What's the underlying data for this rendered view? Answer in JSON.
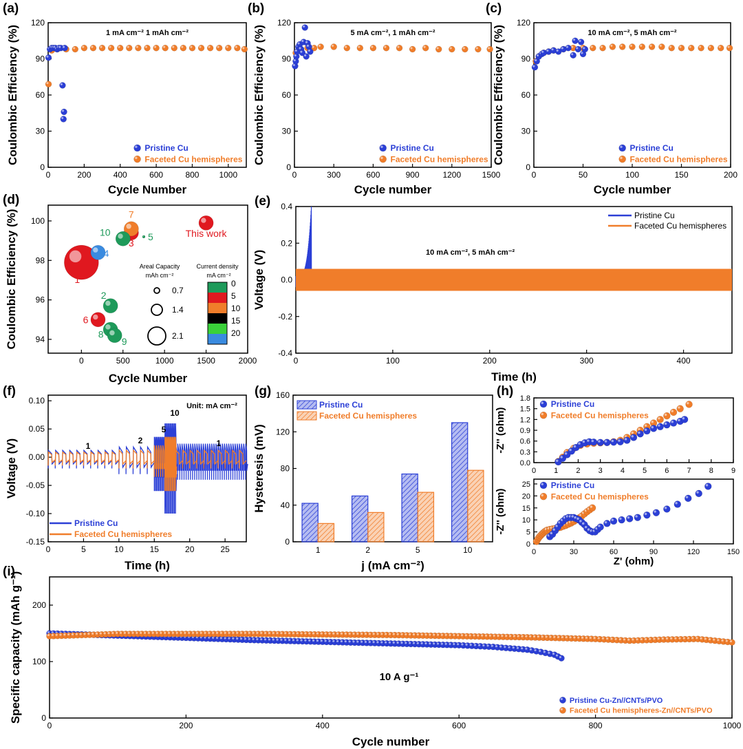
{
  "colors": {
    "pristine": "#2b3fd6",
    "faceted": "#f07d2a",
    "axis": "#000000"
  },
  "chart_data": [
    {
      "panel": "(a)",
      "type": "scatter",
      "annotation": "1 mA cm⁻² 1 mAh cm⁻²",
      "xlabel": "Cycle Number",
      "ylabel": "Coulombic Efficiency (%)",
      "xlim": [
        0,
        1100
      ],
      "ylim": [
        0,
        120
      ],
      "xticks": [
        0,
        200,
        400,
        600,
        800,
        1000
      ],
      "yticks": [
        0,
        30,
        60,
        90,
        120
      ],
      "legend": "bottom-right",
      "series": [
        {
          "name": "Pristine Cu",
          "x": [
            2,
            10,
            20,
            30,
            40,
            50,
            60,
            70,
            80,
            85,
            88,
            92
          ],
          "y": [
            91,
            98,
            99,
            99,
            99,
            98,
            99,
            99,
            68,
            40,
            46,
            99
          ]
        },
        {
          "name": "Faceted Cu hemispheres",
          "x": [
            2,
            20,
            50,
            100,
            150,
            200,
            250,
            300,
            350,
            400,
            450,
            500,
            550,
            600,
            650,
            700,
            750,
            800,
            850,
            900,
            950,
            1000,
            1050,
            1090
          ],
          "y": [
            69,
            97,
            98,
            98,
            98,
            99,
            99,
            99,
            99,
            99,
            99,
            99,
            99,
            99,
            99,
            99,
            99,
            99,
            99,
            99,
            99,
            99,
            99,
            98
          ]
        }
      ]
    },
    {
      "panel": "(b)",
      "type": "scatter",
      "annotation": "5 mA cm⁻², 1 mAh cm⁻²",
      "xlabel": "Cycle number",
      "ylabel": "Coulombic Efficiency (%)",
      "xlim": [
        0,
        1500
      ],
      "ylim": [
        0,
        120
      ],
      "xticks": [
        0,
        300,
        600,
        900,
        1200,
        1500
      ],
      "yticks": [
        0,
        30,
        60,
        90,
        120
      ],
      "legend": "bottom-right",
      "series": [
        {
          "name": "Pristine Cu",
          "x": [
            5,
            10,
            15,
            20,
            30,
            40,
            50,
            60,
            70,
            80,
            90,
            100,
            110,
            120
          ],
          "y": [
            84,
            88,
            92,
            96,
            100,
            102,
            98,
            95,
            104,
            116,
            92,
            103,
            100,
            96
          ]
        },
        {
          "name": "Faceted Cu hemispheres",
          "x": [
            10,
            50,
            100,
            150,
            200,
            300,
            400,
            500,
            600,
            700,
            800,
            900,
            1000,
            1100,
            1200,
            1300,
            1400,
            1490
          ],
          "y": [
            95,
            98,
            99,
            99,
            100,
            100,
            99,
            99,
            99,
            99,
            99,
            98,
            99,
            98,
            98,
            98,
            98,
            98
          ]
        }
      ]
    },
    {
      "panel": "(c)",
      "type": "scatter",
      "annotation": "10 mA cm⁻², 5 mAh cm⁻²",
      "xlabel": "Cycle number",
      "ylabel": "Coulombic Efficiency (%)",
      "xlim": [
        0,
        200
      ],
      "ylim": [
        0,
        120
      ],
      "xticks": [
        0,
        50,
        100,
        150,
        200
      ],
      "yticks": [
        0,
        30,
        60,
        90,
        120
      ],
      "legend": "bottom-right",
      "series": [
        {
          "name": "Pristine Cu",
          "x": [
            1,
            3,
            5,
            8,
            10,
            15,
            20,
            25,
            30,
            35,
            40,
            42,
            45,
            48,
            50,
            52
          ],
          "y": [
            83,
            88,
            92,
            94,
            95,
            96,
            97,
            96,
            98,
            99,
            93,
            105,
            98,
            104,
            94,
            98
          ]
        },
        {
          "name": "Faceted Cu hemispheres",
          "x": [
            2,
            5,
            10,
            15,
            20,
            30,
            40,
            50,
            60,
            70,
            80,
            90,
            100,
            110,
            120,
            130,
            140,
            150,
            160,
            170,
            180,
            190,
            199
          ],
          "y": [
            88,
            92,
            95,
            96,
            97,
            98,
            99,
            99,
            99,
            99,
            100,
            100,
            100,
            100,
            100,
            100,
            99,
            99,
            99,
            99,
            99,
            99,
            99
          ]
        }
      ]
    },
    {
      "panel": "(d)",
      "type": "scatter",
      "xlabel": "Cycle Number",
      "ylabel": "Coulombic Efficiency (%)",
      "xlim": [
        -400,
        2000
      ],
      "ylim": [
        93.3,
        100.8
      ],
      "xticks": [
        0,
        500,
        1000,
        1500,
        2000
      ],
      "yticks": [
        94,
        96,
        98,
        100
      ],
      "points": [
        {
          "label": "1",
          "x": 0,
          "y": 97.9,
          "capacity": 2.5,
          "color": "#e0181f"
        },
        {
          "label": "2",
          "x": 350,
          "y": 95.7,
          "capacity": 0.7,
          "color": "#1e9a5a"
        },
        {
          "label": "3",
          "x": 600,
          "y": 99.4,
          "capacity": 0.7,
          "color": "#e0181f"
        },
        {
          "label": "4",
          "x": 200,
          "y": 98.4,
          "capacity": 0.7,
          "color": "#3a8be0"
        },
        {
          "label": "5",
          "x": 750,
          "y": 99.2,
          "capacity": 0.1,
          "color": "#1e9a5a"
        },
        {
          "label": "6",
          "x": 200,
          "y": 95.0,
          "capacity": 0.7,
          "color": "#e0181f"
        },
        {
          "label": "7",
          "x": 600,
          "y": 99.6,
          "capacity": 0.7,
          "color": "#f07d2a"
        },
        {
          "label": "8",
          "x": 350,
          "y": 94.5,
          "capacity": 0.7,
          "color": "#1e9a5a"
        },
        {
          "label": "9",
          "x": 400,
          "y": 94.2,
          "capacity": 0.7,
          "color": "#1e9a5a"
        },
        {
          "label": "10",
          "x": 500,
          "y": 99.1,
          "capacity": 0.7,
          "color": "#1e9a5a"
        },
        {
          "label": "This work",
          "x": 1500,
          "y": 99.9,
          "capacity": 0.7,
          "color": "#e0181f"
        }
      ],
      "size_legend": {
        "title": [
          "Areal Capacity",
          "mAh cm⁻²"
        ],
        "values": [
          "0.7",
          "1.4",
          "2.1"
        ]
      },
      "color_legend": {
        "title": [
          "Current density",
          "mA cm⁻²"
        ],
        "values": [
          "0",
          "5",
          "10",
          "15",
          "20"
        ],
        "colors": [
          "#1e9a5a",
          "#e0181f",
          "#f07d2a",
          "#000000",
          "#3ad13a",
          "#3a8be0"
        ]
      }
    },
    {
      "panel": "(e)",
      "type": "line",
      "annotation": "10 mA cm⁻², 5 mAh cm⁻²",
      "xlabel": "Time (h)",
      "ylabel": "Voltage (V)",
      "xlim": [
        0,
        450
      ],
      "ylim": [
        -0.4,
        0.4
      ],
      "xticks": [
        0,
        100,
        200,
        300,
        400
      ],
      "yticks": [
        -0.4,
        -0.2,
        0.0,
        0.2,
        0.4
      ],
      "legend": "top-right",
      "series": [
        {
          "name": "Pristine Cu",
          "time_h": [
            0,
            16
          ],
          "voltage_band": [
            -0.04,
            0.4
          ]
        },
        {
          "name": "Faceted Cu hemispheres",
          "time_h": [
            0,
            450
          ],
          "voltage_band": [
            -0.06,
            0.06
          ]
        }
      ]
    },
    {
      "panel": "(f)",
      "type": "line",
      "annotation": "Unit: mA cm⁻²",
      "step_labels": [
        "1",
        "2",
        "5",
        "10",
        "1"
      ],
      "xlabel": "Time (h)",
      "ylabel": "Voltage (V)",
      "xlim": [
        0,
        28
      ],
      "ylim": [
        -0.15,
        0.11
      ],
      "xticks": [
        0,
        5,
        10,
        15,
        20,
        25
      ],
      "yticks": [
        -0.15,
        -0.1,
        -0.05,
        0.0,
        0.05,
        0.1
      ],
      "legend": "bottom-left",
      "series": [
        {
          "name": "Pristine Cu",
          "segments": [
            {
              "t": [
                0,
                10
              ],
              "amp": 0.02
            },
            {
              "t": [
                10,
                15
              ],
              "amp": 0.03
            },
            {
              "t": [
                15,
                16.5
              ],
              "amp": 0.06
            },
            {
              "t": [
                16.5,
                18
              ],
              "amp": 0.1
            },
            {
              "t": [
                18,
                28
              ],
              "amp": 0.04
            }
          ]
        },
        {
          "name": "Faceted Cu hemispheres",
          "segments": [
            {
              "t": [
                0,
                10
              ],
              "amp": 0.015
            },
            {
              "t": [
                10,
                15
              ],
              "amp": 0.02
            },
            {
              "t": [
                15,
                16.5
              ],
              "amp": 0.035
            },
            {
              "t": [
                16.5,
                18
              ],
              "amp": 0.06
            },
            {
              "t": [
                18,
                28
              ],
              "amp": 0.02
            }
          ]
        }
      ]
    },
    {
      "panel": "(g)",
      "type": "bar",
      "xlabel": "j (mA cm⁻²)",
      "ylabel": "Hysteresis (mV)",
      "categories": [
        "1",
        "2",
        "5",
        "10"
      ],
      "ylim": [
        0,
        160
      ],
      "yticks": [
        0,
        40,
        80,
        120,
        160
      ],
      "legend": "top-left",
      "series": [
        {
          "name": "Pristine Cu",
          "values": [
            42,
            50,
            74,
            130
          ]
        },
        {
          "name": "Faceted Cu hemispheres",
          "values": [
            20,
            32,
            54,
            78
          ]
        }
      ]
    },
    {
      "panel": "(h)",
      "type": "scatter",
      "xlabel": "",
      "ylabel": "-Z'' (ohm)",
      "xlim": [
        0,
        9
      ],
      "ylim": [
        0,
        1.8
      ],
      "xticks": [
        0,
        1,
        2,
        3,
        4,
        5,
        6,
        7,
        8,
        9
      ],
      "yticks": [
        0.0,
        0.3,
        0.6,
        0.9,
        1.2,
        1.5,
        1.8
      ],
      "ytick_labels": [
        "0.0",
        "0.3",
        "0.6",
        "0.9",
        "1.2",
        "1.5",
        "1.8"
      ],
      "legend": "top-left",
      "series": [
        {
          "name": "Pristine Cu",
          "x": [
            1.1,
            1.3,
            1.5,
            1.7,
            1.9,
            2.1,
            2.3,
            2.5,
            2.7,
            3.0,
            3.3,
            3.6,
            3.9,
            4.2,
            4.5,
            4.8,
            5.1,
            5.4,
            5.7,
            6.0,
            6.3,
            6.6,
            6.8
          ],
          "y": [
            0.02,
            0.12,
            0.22,
            0.32,
            0.42,
            0.5,
            0.55,
            0.58,
            0.57,
            0.56,
            0.56,
            0.57,
            0.58,
            0.62,
            0.7,
            0.8,
            0.88,
            0.95,
            1.0,
            1.05,
            1.1,
            1.15,
            1.2
          ]
        },
        {
          "name": "Faceted Cu hemispheres",
          "x": [
            1.1,
            1.3,
            1.5,
            1.8,
            2.1,
            2.4,
            2.7,
            3.0,
            3.3,
            3.6,
            3.9,
            4.2,
            4.5,
            4.8,
            5.1,
            5.4,
            5.7,
            6.0,
            6.3,
            6.6,
            7.0
          ],
          "y": [
            0.03,
            0.15,
            0.28,
            0.4,
            0.48,
            0.52,
            0.54,
            0.55,
            0.56,
            0.58,
            0.62,
            0.7,
            0.8,
            0.9,
            1.0,
            1.1,
            1.2,
            1.3,
            1.4,
            1.5,
            1.62
          ]
        }
      ]
    },
    {
      "panel": "(h) lower",
      "type": "scatter",
      "xlabel": "Z' (ohm)",
      "ylabel": "-Z'' (ohm)",
      "xlim": [
        0,
        150
      ],
      "ylim": [
        0,
        27
      ],
      "xticks": [
        0,
        30,
        60,
        90,
        120,
        150
      ],
      "yticks": [
        0,
        5,
        10,
        15,
        20,
        25
      ],
      "legend": "top-left",
      "series": [
        {
          "name": "Pristine Cu",
          "x": [
            12,
            14,
            16,
            18,
            20,
            22,
            24,
            26,
            28,
            30,
            32,
            34,
            36,
            38,
            40,
            42,
            44,
            46,
            48,
            50,
            55,
            60,
            66,
            72,
            78,
            85,
            92,
            100,
            108,
            116,
            124,
            131
          ],
          "y": [
            3,
            4,
            5.5,
            7,
            8.5,
            9.5,
            10.5,
            11,
            11,
            11,
            10.5,
            10,
            9,
            8,
            6.5,
            5.5,
            5,
            5,
            6,
            7,
            8.5,
            9.5,
            10,
            10.5,
            11,
            12,
            13,
            14.5,
            16.5,
            19,
            21,
            24
          ]
        },
        {
          "name": "Faceted Cu hemispheres",
          "x": [
            2,
            3,
            4,
            5,
            6,
            7,
            8,
            9,
            10,
            12,
            14,
            16,
            18,
            20,
            22,
            24,
            26,
            28,
            30,
            32,
            34,
            36,
            38,
            40,
            42,
            44
          ],
          "y": [
            1,
            2,
            2.8,
            3.4,
            4,
            4.5,
            5,
            5.4,
            5.7,
            6,
            6.2,
            6.4,
            6.6,
            6.9,
            7.3,
            7.7,
            8.2,
            8.7,
            9.3,
            10,
            10.8,
            11.6,
            12.5,
            13.4,
            14.2,
            15
          ]
        }
      ]
    },
    {
      "panel": "(i)",
      "type": "scatter",
      "annotation": "10 A g⁻¹",
      "xlabel": "Cycle number",
      "ylabel": "Specific capacity (mAh g⁻¹)",
      "xlim": [
        0,
        1000
      ],
      "ylim": [
        0,
        250
      ],
      "xticks": [
        0,
        200,
        400,
        600,
        800,
        1000
      ],
      "yticks": [
        0,
        100,
        200
      ],
      "legend": "bottom-right",
      "series": [
        {
          "name": "Pristine Cu-Zn//CNTs/PVO",
          "x": [
            0,
            100,
            200,
            300,
            400,
            500,
            600,
            650,
            700,
            720,
            740,
            750
          ],
          "y": [
            150,
            146,
            142,
            138,
            135,
            132,
            129,
            126,
            121,
            117,
            112,
            106
          ]
        },
        {
          "name": "Faceted Cu hemispheres-Zn//CNTs/PVO",
          "x": [
            0,
            100,
            200,
            300,
            400,
            500,
            600,
            700,
            800,
            850,
            900,
            950,
            1000
          ],
          "y": [
            145,
            149,
            149,
            149,
            148,
            147,
            145,
            143,
            140,
            137,
            139,
            140,
            134
          ]
        }
      ]
    }
  ]
}
